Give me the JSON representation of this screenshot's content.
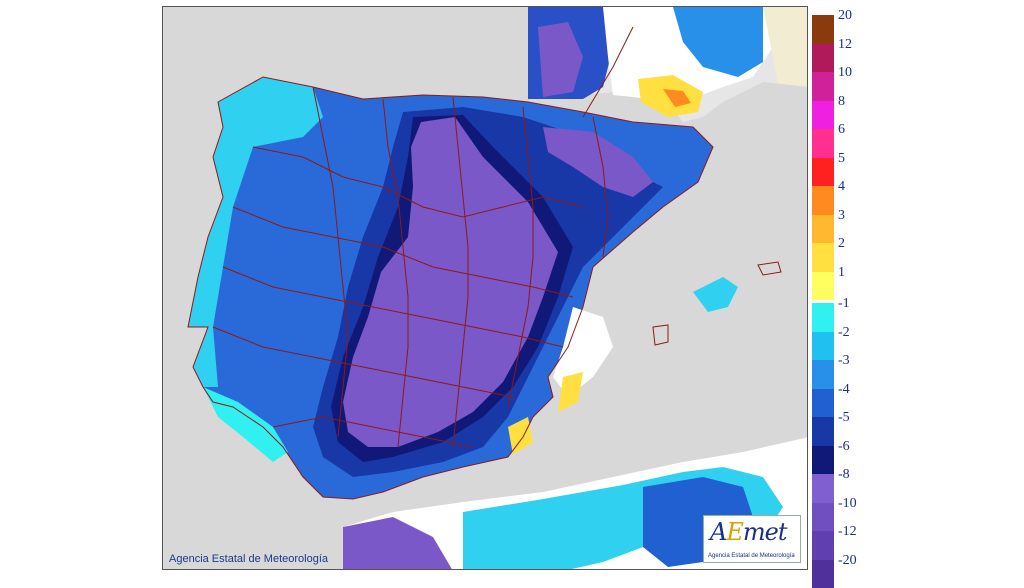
{
  "map": {
    "copyright": "Agencia Estatal de Meteorología",
    "logo": {
      "word_a": "A",
      "word_e": "E",
      "word_rest": "met",
      "subtitle": "Agencia Estatal de Meteorología"
    },
    "colors": {
      "land_other": "#d8d8d8",
      "sea": "#d8d8d8",
      "border_line": "#8b1a1a",
      "background": "#ffffff"
    }
  },
  "legend": {
    "positive": [
      {
        "label": "20",
        "color": "#8b3a0e"
      },
      {
        "label": "12",
        "color": "#b01a5a"
      },
      {
        "label": "10",
        "color": "#d0209a"
      },
      {
        "label": "8",
        "color": "#f020e0"
      },
      {
        "label": "6",
        "color": "#ff3090"
      },
      {
        "label": "5",
        "color": "#ff2020"
      },
      {
        "label": "4",
        "color": "#ff8a20"
      },
      {
        "label": "3",
        "color": "#ffb830"
      },
      {
        "label": "2",
        "color": "#ffe040"
      },
      {
        "label": "1",
        "color": "#ffff60"
      }
    ],
    "negative": [
      {
        "label": "-1",
        "color": "#30f0f0"
      },
      {
        "label": "-2",
        "color": "#20c0f0"
      },
      {
        "label": "-3",
        "color": "#2890e8"
      },
      {
        "label": "-4",
        "color": "#2060d0"
      },
      {
        "label": "-5",
        "color": "#1838a8"
      },
      {
        "label": "-6",
        "color": "#101878"
      },
      {
        "label": "-8",
        "color": "#8060d0"
      },
      {
        "label": "-10",
        "color": "#7050c0"
      },
      {
        "label": "-12",
        "color": "#6040b0"
      },
      {
        "label": "-20",
        "color": "#50309a"
      }
    ]
  }
}
